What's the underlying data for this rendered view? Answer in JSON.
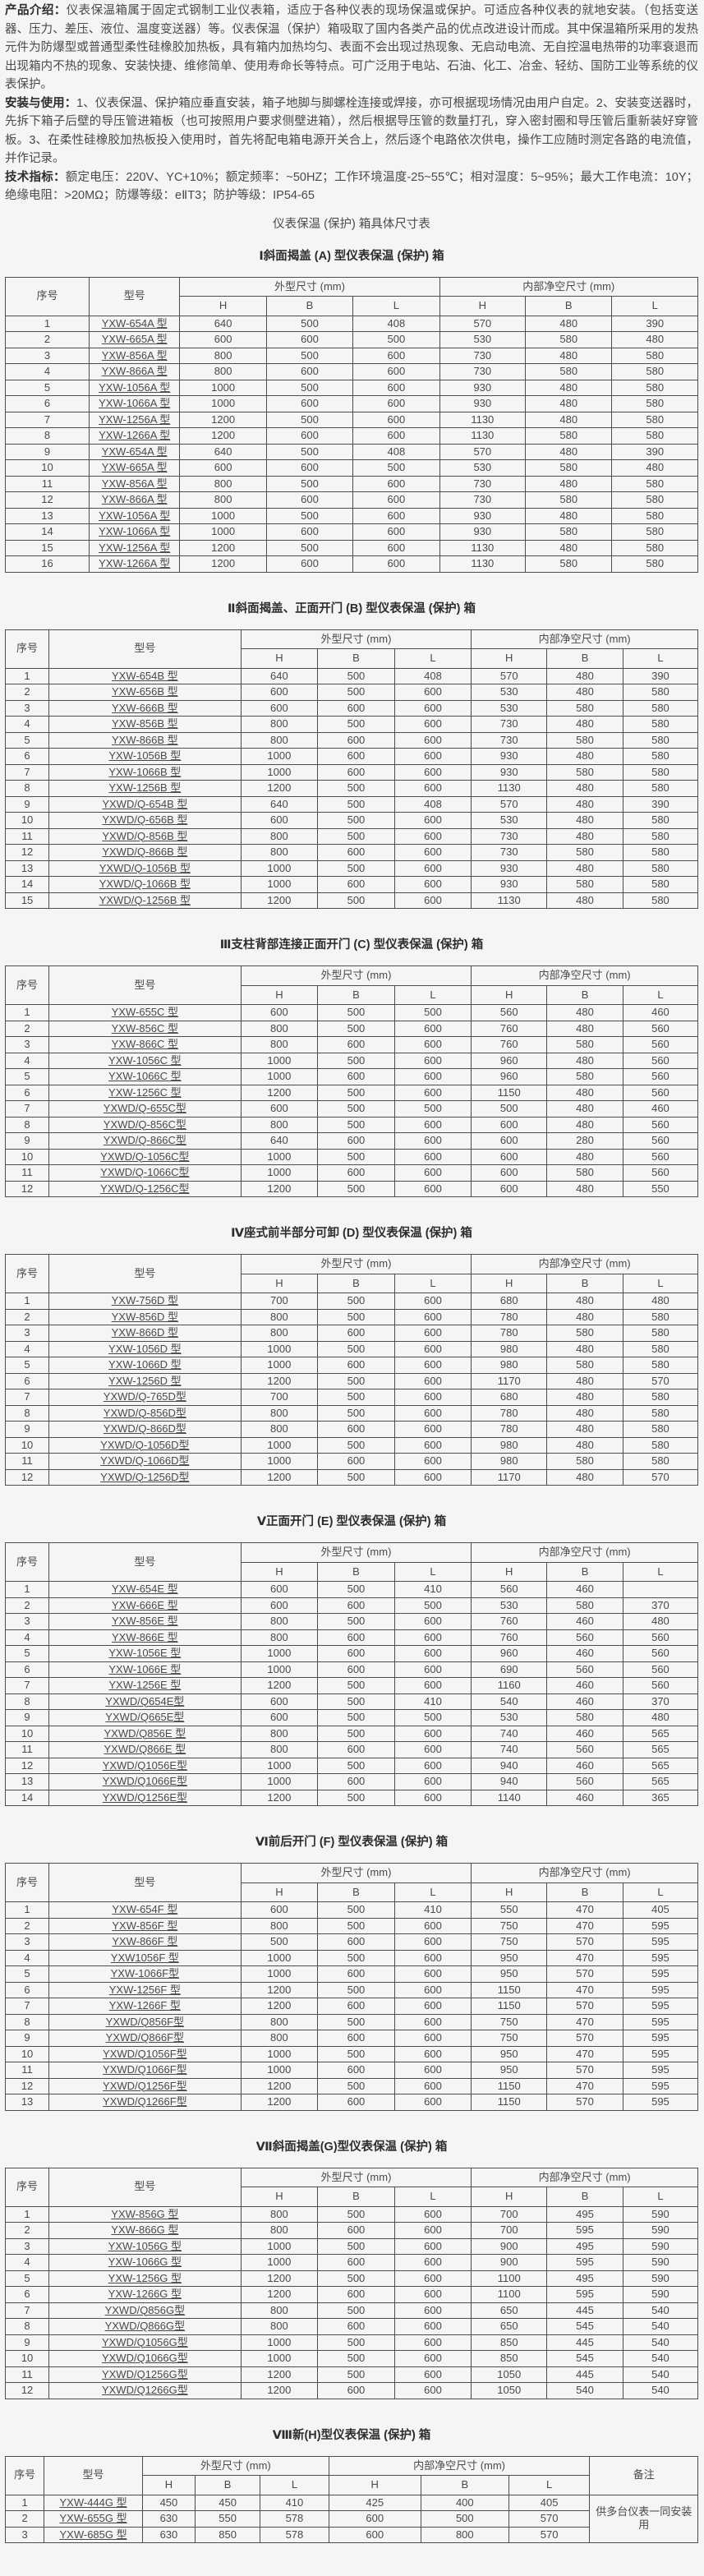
{
  "colors": {
    "page_bg": "#f5f5f7",
    "text": "#4a4a4a",
    "border": "#4d4d4d"
  },
  "intro": {
    "label": "产品介绍：",
    "text": "仪表保温箱属于固定式钢制工业仪表箱，适应于各种仪表的现场保温或保护。可适应各种仪表的就地安装。（包括变送器、压力、差压、液位、温度变送器）等。仪表保温（保护）箱吸取了国内各类产品的优点改进设计而成。其中保温箱所采用的发热元件为防爆型或普通型柔性硅橡胶加热板，具有箱内加热均匀、表面不会出现过热现象、无启动电流、无自控温电热带的功率衰退而出现箱内不热的现象、安装快捷、维修简单、使用寿命长等特点。可广泛用于电站、石油、化工、冶金、轻纺、国防工业等系统的仪表保护。"
  },
  "install": {
    "label": "安装与使用：",
    "text": "1、仪表保温、保护箱应垂直安装，箱子地脚与脚螺栓连接或焊接，亦可根据现场情况由用户自定。2、安装变送器时，先拆下箱子后壁的导压管进箱板（也可按照用户要求侧壁进箱），然后根据导压管的数量打孔，穿入密封圈和导压管后重新装好穿管板。3、在柔性硅橡胶加热板投入使用时，首先将配电箱电源开关合上，然后逐个电路依次供电，操作工应随时测定各路的电流值，并作记录。"
  },
  "specs": {
    "label": "技术指标：",
    "text": "额定电压：220V、YC+10%；额定频率：~50HZ；工作环境温度-25~55℃；相对湿度：5~95%；最大工作电流：10Y；绝缘电阻：>20MΩ；防爆等级：eⅡT3；防护等级：IP54-65"
  },
  "main_title": "仪表保温 (保护) 箱具体尺寸表",
  "headers": {
    "index": "序号",
    "model": "型号",
    "outer": "外型尺寸 (mm)",
    "inner": "内部净空尺寸 (mm)",
    "h": "H",
    "b": "B",
    "l": "L",
    "remark": "备注"
  },
  "tables": [
    {
      "title": "Ⅰ斜面揭盖 (A) 型仪表保温 (保护) 箱",
      "rows": [
        [
          "1",
          "YXW-654A 型",
          "640",
          "500",
          "408",
          "570",
          "480",
          "390"
        ],
        [
          "2",
          "YXW-665A 型",
          "600",
          "600",
          "500",
          "530",
          "580",
          "480"
        ],
        [
          "3",
          "YXW-856A 型",
          "800",
          "500",
          "600",
          "730",
          "480",
          "580"
        ],
        [
          "4",
          "YXW-866A 型",
          "800",
          "600",
          "600",
          "730",
          "580",
          "580"
        ],
        [
          "5",
          "YXW-1056A 型",
          "1000",
          "500",
          "600",
          "930",
          "480",
          "580"
        ],
        [
          "6",
          "YXW-1066A 型",
          "1000",
          "600",
          "600",
          "930",
          "480",
          "580"
        ],
        [
          "7",
          "YXW-1256A 型",
          "1200",
          "500",
          "600",
          "1130",
          "480",
          "580"
        ],
        [
          "8",
          "YXW-1266A 型",
          "1200",
          "600",
          "600",
          "1130",
          "580",
          "580"
        ],
        [
          "9",
          "YXW-654A 型",
          "640",
          "500",
          "408",
          "570",
          "480",
          "390"
        ],
        [
          "10",
          "YXW-665A 型",
          "600",
          "600",
          "500",
          "530",
          "580",
          "480"
        ],
        [
          "11",
          "YXW-856A 型",
          "800",
          "500",
          "600",
          "730",
          "480",
          "580"
        ],
        [
          "12",
          "YXW-866A 型",
          "800",
          "600",
          "600",
          "730",
          "580",
          "580"
        ],
        [
          "13",
          "YXW-1056A 型",
          "1000",
          "500",
          "600",
          "930",
          "480",
          "580"
        ],
        [
          "14",
          "YXW-1066A 型",
          "1000",
          "600",
          "600",
          "930",
          "580",
          "580"
        ],
        [
          "15",
          "YXW-1256A 型",
          "1200",
          "500",
          "600",
          "1130",
          "480",
          "580"
        ],
        [
          "16",
          "YXW-1266A 型",
          "1200",
          "600",
          "600",
          "1130",
          "580",
          "580"
        ]
      ]
    },
    {
      "title": "Ⅱ斜面揭盖、正面开门 (B) 型仪表保温 (保护) 箱",
      "rows": [
        [
          "1",
          "YXW-654B 型",
          "640",
          "500",
          "408",
          "570",
          "480",
          "390"
        ],
        [
          "2",
          "YXW-656B 型",
          "600",
          "500",
          "600",
          "530",
          "480",
          "580"
        ],
        [
          "3",
          "YXW-666B 型",
          "600",
          "600",
          "600",
          "530",
          "580",
          "580"
        ],
        [
          "4",
          "YXW-856B 型",
          "800",
          "500",
          "600",
          "730",
          "480",
          "580"
        ],
        [
          "5",
          "YXW-866B 型",
          "800",
          "600",
          "600",
          "730",
          "580",
          "580"
        ],
        [
          "6",
          "YXW-1056B 型",
          "1000",
          "600",
          "600",
          "930",
          "480",
          "580"
        ],
        [
          "7",
          "YXW-1066B 型",
          "1000",
          "600",
          "600",
          "930",
          "580",
          "580"
        ],
        [
          "8",
          "YXW-1256B 型",
          "1200",
          "500",
          "600",
          "1130",
          "480",
          "580"
        ],
        [
          "9",
          "YXWD/Q-654B 型",
          "640",
          "500",
          "408",
          "570",
          "480",
          "390"
        ],
        [
          "10",
          "YXWD/Q-656B 型",
          "600",
          "500",
          "600",
          "530",
          "480",
          "580"
        ],
        [
          "11",
          "YXWD/Q-856B 型",
          "800",
          "500",
          "600",
          "730",
          "480",
          "580"
        ],
        [
          "12",
          "YXWD/Q-866B 型",
          "800",
          "600",
          "600",
          "730",
          "580",
          "580"
        ],
        [
          "13",
          "YXWD/Q-1056B 型",
          "1000",
          "500",
          "600",
          "930",
          "480",
          "580"
        ],
        [
          "14",
          "YXWD/Q-1066B 型",
          "1000",
          "600",
          "600",
          "930",
          "580",
          "580"
        ],
        [
          "15",
          "YXWD/Q-1256B 型",
          "1200",
          "500",
          "600",
          "1130",
          "480",
          "580"
        ]
      ]
    },
    {
      "title": "Ⅲ支柱背部连接正面开门 (C) 型仪表保温 (保护) 箱",
      "rows": [
        [
          "1",
          "YXW-655C 型",
          "600",
          "500",
          "500",
          "560",
          "480",
          "460"
        ],
        [
          "2",
          "YXW-856C 型",
          "800",
          "500",
          "600",
          "760",
          "480",
          "560"
        ],
        [
          "3",
          "YXW-866C 型",
          "800",
          "600",
          "600",
          "760",
          "580",
          "560"
        ],
        [
          "4",
          "YXW-1056C 型",
          "1000",
          "500",
          "600",
          "960",
          "480",
          "560"
        ],
        [
          "5",
          "YXW-1066C 型",
          "1000",
          "600",
          "600",
          "960",
          "580",
          "560"
        ],
        [
          "6",
          "YXW-1256C 型",
          "1200",
          "500",
          "600",
          "1150",
          "480",
          "560"
        ],
        [
          "7",
          "YXWD/Q-655C型",
          "600",
          "500",
          "500",
          "500",
          "480",
          "460"
        ],
        [
          "8",
          "YXWD/Q-856C型",
          "800",
          "500",
          "600",
          "600",
          "480",
          "560"
        ],
        [
          "9",
          "YXWD/Q-866C型",
          "640",
          "600",
          "600",
          "600",
          "280",
          "560"
        ],
        [
          "10",
          "YXWD/Q-1056C型",
          "1000",
          "500",
          "600",
          "600",
          "480",
          "560"
        ],
        [
          "11",
          "YXWD/Q-1066C型",
          "1000",
          "600",
          "600",
          "600",
          "580",
          "560"
        ],
        [
          "12",
          "YXWD/Q-1256C型",
          "1200",
          "500",
          "600",
          "600",
          "480",
          "550"
        ]
      ]
    },
    {
      "title": "Ⅳ座式前半部分可卸 (D) 型仪表保温 (保护) 箱",
      "rows": [
        [
          "1",
          "YXW-756D 型",
          "700",
          "500",
          "600",
          "680",
          "480",
          "480"
        ],
        [
          "2",
          "YXW-856D 型",
          "800",
          "500",
          "600",
          "780",
          "480",
          "580"
        ],
        [
          "3",
          "YXW-866D 型",
          "800",
          "600",
          "600",
          "780",
          "580",
          "580"
        ],
        [
          "4",
          "YXW-1056D 型",
          "1000",
          "500",
          "600",
          "980",
          "480",
          "580"
        ],
        [
          "5",
          "YXW-1066D 型",
          "1000",
          "600",
          "600",
          "980",
          "580",
          "580"
        ],
        [
          "6",
          "YXW-1256D 型",
          "1200",
          "500",
          "600",
          "1170",
          "480",
          "570"
        ],
        [
          "7",
          "YXWD/Q-765D型",
          "700",
          "500",
          "600",
          "680",
          "480",
          "580"
        ],
        [
          "8",
          "YXWD/Q-856D型",
          "800",
          "500",
          "600",
          "780",
          "480",
          "580"
        ],
        [
          "9",
          "YXWD/Q-866D型",
          "800",
          "600",
          "600",
          "780",
          "480",
          "580"
        ],
        [
          "10",
          "YXWD/Q-1056D型",
          "1000",
          "500",
          "600",
          "980",
          "480",
          "580"
        ],
        [
          "11",
          "YXWD/Q-1066D型",
          "1000",
          "600",
          "600",
          "980",
          "580",
          "580"
        ],
        [
          "12",
          "YXWD/Q-1256D型",
          "1200",
          "500",
          "600",
          "1170",
          "480",
          "570"
        ]
      ]
    },
    {
      "title": "Ⅴ正面开门 (E) 型仪表保温 (保护) 箱",
      "rows": [
        [
          "1",
          "YXW-654E 型",
          "600",
          "500",
          "410",
          "560",
          "460",
          ""
        ],
        [
          "2",
          "YXW-666E 型",
          "600",
          "600",
          "500",
          "530",
          "580",
          "370"
        ],
        [
          "3",
          "YXW-856E 型",
          "800",
          "500",
          "600",
          "760",
          "460",
          "480"
        ],
        [
          "4",
          "YXW-866E 型",
          "800",
          "600",
          "600",
          "760",
          "560",
          "560"
        ],
        [
          "5",
          "YXW-1056E 型",
          "1000",
          "600",
          "600",
          "960",
          "460",
          "560"
        ],
        [
          "6",
          "YXW-1066E 型",
          "1000",
          "600",
          "600",
          "690",
          "560",
          "560"
        ],
        [
          "7",
          "YXW-1256E 型",
          "1200",
          "500",
          "600",
          "1160",
          "460",
          "560"
        ],
        [
          "8",
          "YXWD/Q654E型",
          "600",
          "500",
          "410",
          "540",
          "460",
          "370"
        ],
        [
          "9",
          "YXWD/Q665E型",
          "600",
          "500",
          "500",
          "530",
          "580",
          "480"
        ],
        [
          "10",
          "YXWD/Q856E 型",
          "800",
          "500",
          "600",
          "740",
          "460",
          "565"
        ],
        [
          "11",
          "YXWD/Q866E 型",
          "800",
          "600",
          "600",
          "740",
          "560",
          "565"
        ],
        [
          "12",
          "YXWD/Q1056E型",
          "1000",
          "500",
          "600",
          "940",
          "460",
          "565"
        ],
        [
          "13",
          "YXWD/Q1066E型",
          "1000",
          "600",
          "600",
          "940",
          "560",
          "565"
        ],
        [
          "14",
          "YXWD/Q1256E型",
          "1200",
          "500",
          "600",
          "1140",
          "460",
          "365"
        ]
      ]
    },
    {
      "title": "Ⅵ前后开门 (F) 型仪表保温 (保护) 箱",
      "rows": [
        [
          "1",
          "YXW-654F 型",
          "600",
          "500",
          "410",
          "550",
          "470",
          "405"
        ],
        [
          "2",
          "YXW-856F 型",
          "800",
          "500",
          "600",
          "750",
          "470",
          "595"
        ],
        [
          "3",
          "YXW-866F 型",
          "500",
          "600",
          "600",
          "750",
          "570",
          "595"
        ],
        [
          "4",
          "YXW1056F 型",
          "1000",
          "500",
          "600",
          "950",
          "470",
          "595"
        ],
        [
          "5",
          "YXW-1066F型",
          "1000",
          "600",
          "600",
          "950",
          "570",
          "595"
        ],
        [
          "6",
          "YXW-1256F 型",
          "1200",
          "500",
          "600",
          "1150",
          "470",
          "595"
        ],
        [
          "7",
          "YXW-1266F 型",
          "1200",
          "600",
          "600",
          "1150",
          "570",
          "595"
        ],
        [
          "8",
          "YXWD/Q856F型",
          "800",
          "500",
          "600",
          "750",
          "470",
          "595"
        ],
        [
          "9",
          "YXWD/Q866F型",
          "800",
          "600",
          "600",
          "750",
          "570",
          "595"
        ],
        [
          "10",
          "YXWD/Q1056F型",
          "1000",
          "500",
          "600",
          "950",
          "470",
          "595"
        ],
        [
          "11",
          "YXWD/Q1066F型",
          "1000",
          "600",
          "600",
          "950",
          "570",
          "595"
        ],
        [
          "12",
          "YXWD/Q1256F型",
          "1200",
          "500",
          "600",
          "1150",
          "470",
          "595"
        ],
        [
          "13",
          "YXWD/Q1266F型",
          "1200",
          "600",
          "600",
          "1150",
          "570",
          "595"
        ]
      ]
    },
    {
      "title": "Ⅶ斜面揭盖(G)型仪表保温 (保护) 箱",
      "rows": [
        [
          "1",
          "YXW-856G 型",
          "800",
          "500",
          "600",
          "700",
          "495",
          "590"
        ],
        [
          "2",
          "YXW-866G 型",
          "800",
          "600",
          "600",
          "700",
          "595",
          "590"
        ],
        [
          "3",
          "YXW-1056G 型",
          "1000",
          "500",
          "600",
          "900",
          "495",
          "590"
        ],
        [
          "4",
          "YXW-1066G 型",
          "1000",
          "600",
          "600",
          "900",
          "595",
          "590"
        ],
        [
          "5",
          "YXW-1256G 型",
          "1200",
          "500",
          "600",
          "1100",
          "495",
          "590"
        ],
        [
          "6",
          "YXW-1266G 型",
          "1200",
          "600",
          "600",
          "1100",
          "595",
          "590"
        ],
        [
          "7",
          "YXWD/Q856G型",
          "800",
          "500",
          "600",
          "650",
          "445",
          "540"
        ],
        [
          "8",
          "YXWD/Q866G型",
          "800",
          "600",
          "600",
          "650",
          "545",
          "540"
        ],
        [
          "9",
          "YXWD/Q1056G型",
          "1000",
          "500",
          "600",
          "850",
          "445",
          "540"
        ],
        [
          "10",
          "YXWD/Q1066G型",
          "1000",
          "500",
          "600",
          "850",
          "545",
          "540"
        ],
        [
          "11",
          "YXWD/Q1256G型",
          "1200",
          "500",
          "600",
          "1050",
          "445",
          "540"
        ],
        [
          "12",
          "YXWD/Q1266G型",
          "1200",
          "600",
          "600",
          "1050",
          "540",
          "540"
        ]
      ]
    },
    {
      "title": "Ⅷ新(H)型仪表保温 (保护) 箱",
      "remark": "供多台仪表一同安装用",
      "rows": [
        [
          "1",
          "YXW-444G 型",
          "450",
          "450",
          "410",
          "425",
          "400",
          "405"
        ],
        [
          "2",
          "YXW-655G 型",
          "630",
          "550",
          "578",
          "600",
          "500",
          "570"
        ],
        [
          "3",
          "YXW-685G 型",
          "630",
          "850",
          "578",
          "600",
          "800",
          "570"
        ]
      ]
    }
  ]
}
